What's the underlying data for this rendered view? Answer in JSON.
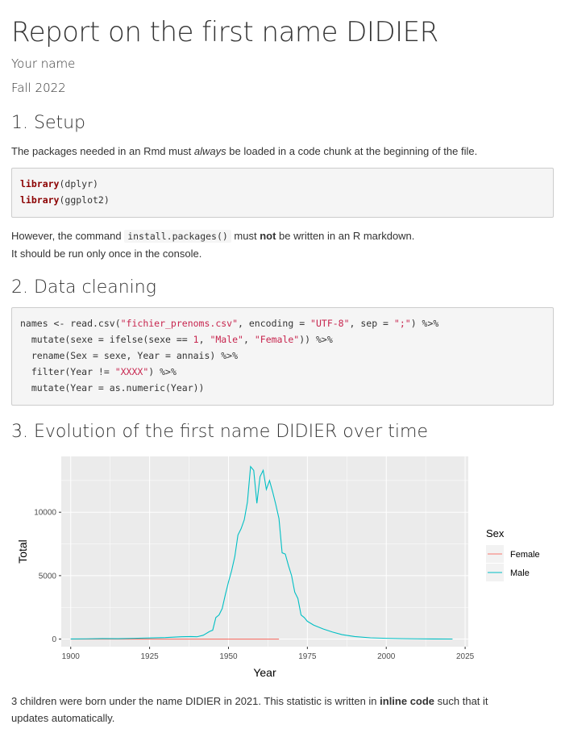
{
  "header": {
    "title": "Report on the first name DIDIER",
    "author": "Your name",
    "date": "Fall 2022"
  },
  "section1": {
    "heading": "1. Setup",
    "intro_before": "The packages needed in an Rmd must ",
    "intro_em": "always",
    "intro_after": " be loaded in a code chunk at the beginning of the file.",
    "code_lines": [
      {
        "fn": "library",
        "arg": "(dplyr)"
      },
      {
        "fn": "library",
        "arg": "(ggplot2)"
      }
    ],
    "note_before": "However, the command ",
    "note_code": "install.packages()",
    "note_mid": " must ",
    "note_bold": "not",
    "note_after": " be written in an R markdown.",
    "note_line2": "It should be run only once in the console."
  },
  "section2": {
    "heading": "2. Data cleaning",
    "code": {
      "l1_a": "names <- read.csv(",
      "l1_s1": "\"fichier_prenoms.csv\"",
      "l1_b": ", encoding = ",
      "l1_s2": "\"UTF-8\"",
      "l1_c": ", sep = ",
      "l1_s3": "\";\"",
      "l1_d": ") %>%",
      "l2_a": "  mutate(sexe = ifelse(sexe == ",
      "l2_n": "1",
      "l2_b": ", ",
      "l2_s1": "\"Male\"",
      "l2_c": ", ",
      "l2_s2": "\"Female\"",
      "l2_d": ")) %>%",
      "l3": "  rename(Sex = sexe, Year = annais) %>%",
      "l4_a": "  filter(Year != ",
      "l4_s": "\"XXXX\"",
      "l4_b": ") %>%",
      "l5": "  mutate(Year = as.numeric(Year))"
    }
  },
  "section3": {
    "heading": "3. Evolution of the first name DIDIER over time",
    "conclusion_before": "3 children were born under the name DIDIER in 2021. This statistic is written in ",
    "conclusion_bold": "inline code",
    "conclusion_after": " such that it",
    "conclusion_line2": "updates automatically."
  },
  "colors": {
    "female": "#F8766D",
    "male": "#00BFC4",
    "panel": "#EBEBEB",
    "grid": "#FFFFFF"
  },
  "chart_data": {
    "type": "line",
    "xlabel": "Year",
    "ylabel": "Total",
    "xlim": [
      1897,
      2026
    ],
    "ylim": [
      -600,
      14400
    ],
    "x_ticks": [
      1900,
      1925,
      1950,
      1975,
      2000,
      2025
    ],
    "y_ticks": [
      0,
      5000,
      10000
    ],
    "y_tick_labels": [
      "0",
      "5000",
      "10000"
    ],
    "legend_title": "Sex",
    "legend_position": "right",
    "grid": true,
    "series": [
      {
        "name": "Female",
        "color": "#F8766D",
        "points": [
          [
            1900,
            0
          ],
          [
            1920,
            0
          ],
          [
            1940,
            0
          ],
          [
            1955,
            0
          ],
          [
            1966,
            0
          ]
        ]
      },
      {
        "name": "Male",
        "color": "#00BFC4",
        "points": [
          [
            1900,
            10
          ],
          [
            1905,
            20
          ],
          [
            1910,
            40
          ],
          [
            1915,
            30
          ],
          [
            1920,
            60
          ],
          [
            1925,
            90
          ],
          [
            1930,
            120
          ],
          [
            1935,
            180
          ],
          [
            1938,
            200
          ],
          [
            1940,
            180
          ],
          [
            1942,
            300
          ],
          [
            1944,
            600
          ],
          [
            1945,
            700
          ],
          [
            1946,
            1700
          ],
          [
            1947,
            1900
          ],
          [
            1948,
            2400
          ],
          [
            1949,
            3500
          ],
          [
            1950,
            4500
          ],
          [
            1951,
            5400
          ],
          [
            1952,
            6500
          ],
          [
            1953,
            8200
          ],
          [
            1954,
            8700
          ],
          [
            1955,
            9400
          ],
          [
            1956,
            10800
          ],
          [
            1957,
            13600
          ],
          [
            1958,
            13300
          ],
          [
            1959,
            10700
          ],
          [
            1960,
            12800
          ],
          [
            1961,
            13300
          ],
          [
            1962,
            11800
          ],
          [
            1963,
            12500
          ],
          [
            1964,
            11600
          ],
          [
            1965,
            10600
          ],
          [
            1966,
            9500
          ],
          [
            1967,
            6800
          ],
          [
            1968,
            6700
          ],
          [
            1969,
            5800
          ],
          [
            1970,
            5000
          ],
          [
            1971,
            3700
          ],
          [
            1972,
            3200
          ],
          [
            1973,
            1900
          ],
          [
            1974,
            1700
          ],
          [
            1975,
            1400
          ],
          [
            1977,
            1100
          ],
          [
            1980,
            800
          ],
          [
            1983,
            550
          ],
          [
            1986,
            350
          ],
          [
            1990,
            200
          ],
          [
            1995,
            100
          ],
          [
            2000,
            60
          ],
          [
            2005,
            35
          ],
          [
            2010,
            20
          ],
          [
            2015,
            10
          ],
          [
            2021,
            3
          ]
        ]
      }
    ]
  }
}
